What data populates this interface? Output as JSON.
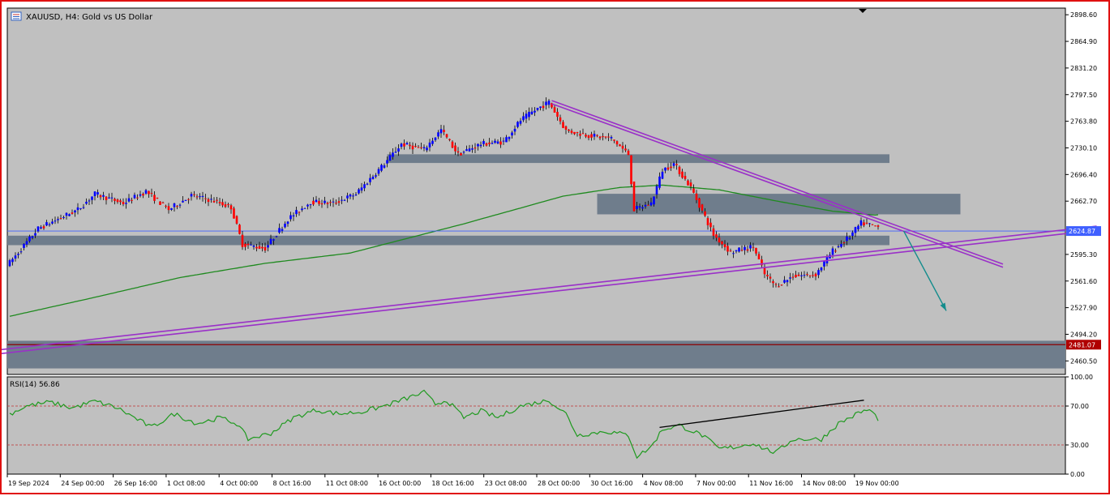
{
  "header": {
    "symbol_title": "XAUUSD, H4:  Gold vs US Dollar"
  },
  "colors": {
    "panel_bg": "#c0c0c0",
    "zone": "#6f7d8c",
    "bull": "#0000ff",
    "bear": "#ff0000",
    "ma": "#1f8a1f",
    "trend": "#9a30c8",
    "rsi": "#1f9a1f",
    "arrow": "#138c8c",
    "support": "#8b0000"
  },
  "chart_data": [
    {
      "type": "candlestick",
      "title": "XAUUSD, H4:  Gold vs US Dollar",
      "ylim": [
        2443.4,
        2907.0
      ],
      "price_ticks": [
        "2898.60",
        "2864.90",
        "2831.20",
        "2797.50",
        "2763.80",
        "2730.10",
        "2696.40",
        "2662.70",
        "2595.30",
        "2561.60",
        "2527.90",
        "2494.20",
        "2460.50"
      ],
      "x_labels": [
        "19 Sep 2024",
        "24 Sep 00:00",
        "26 Sep 16:00",
        "1 Oct 08:00",
        "4 Oct 00:00",
        "8 Oct 16:00",
        "11 Oct 08:00",
        "16 Oct 00:00",
        "18 Oct 16:00",
        "23 Oct 08:00",
        "28 Oct 00:00",
        "30 Oct 16:00",
        "4 Nov 08:00",
        "7 Nov 00:00",
        "11 Nov 16:00",
        "14 Nov 08:00",
        "19 Nov 00:00"
      ],
      "current_price": "2624.87",
      "support_price": "2481.07",
      "anchors": [
        {
          "i": 0,
          "p": 2585
        },
        {
          "i": 10,
          "p": 2628
        },
        {
          "i": 24,
          "p": 2652
        },
        {
          "i": 30,
          "p": 2672
        },
        {
          "i": 40,
          "p": 2660
        },
        {
          "i": 48,
          "p": 2675
        },
        {
          "i": 56,
          "p": 2652
        },
        {
          "i": 64,
          "p": 2670
        },
        {
          "i": 72,
          "p": 2663
        },
        {
          "i": 78,
          "p": 2655
        },
        {
          "i": 82,
          "p": 2608
        },
        {
          "i": 90,
          "p": 2603
        },
        {
          "i": 98,
          "p": 2640
        },
        {
          "i": 106,
          "p": 2662
        },
        {
          "i": 114,
          "p": 2660
        },
        {
          "i": 122,
          "p": 2672
        },
        {
          "i": 132,
          "p": 2710
        },
        {
          "i": 138,
          "p": 2735
        },
        {
          "i": 146,
          "p": 2728
        },
        {
          "i": 152,
          "p": 2753
        },
        {
          "i": 158,
          "p": 2722
        },
        {
          "i": 166,
          "p": 2735
        },
        {
          "i": 174,
          "p": 2738
        },
        {
          "i": 180,
          "p": 2765
        },
        {
          "i": 186,
          "p": 2780
        },
        {
          "i": 190,
          "p": 2788
        },
        {
          "i": 196,
          "p": 2752
        },
        {
          "i": 204,
          "p": 2746
        },
        {
          "i": 212,
          "p": 2742
        },
        {
          "i": 218,
          "p": 2722
        },
        {
          "i": 220,
          "p": 2652
        },
        {
          "i": 226,
          "p": 2660
        },
        {
          "i": 230,
          "p": 2702
        },
        {
          "i": 234,
          "p": 2710
        },
        {
          "i": 240,
          "p": 2680
        },
        {
          "i": 248,
          "p": 2620
        },
        {
          "i": 254,
          "p": 2598
        },
        {
          "i": 262,
          "p": 2605
        },
        {
          "i": 266,
          "p": 2570
        },
        {
          "i": 270,
          "p": 2555
        },
        {
          "i": 276,
          "p": 2568
        },
        {
          "i": 284,
          "p": 2570
        },
        {
          "i": 290,
          "p": 2600
        },
        {
          "i": 296,
          "p": 2618
        },
        {
          "i": 300,
          "p": 2635
        },
        {
          "i": 306,
          "p": 2630
        }
      ],
      "moving_average": [
        {
          "i": 0,
          "p": 2517
        },
        {
          "i": 30,
          "p": 2541
        },
        {
          "i": 60,
          "p": 2566
        },
        {
          "i": 90,
          "p": 2584
        },
        {
          "i": 120,
          "p": 2597
        },
        {
          "i": 160,
          "p": 2634
        },
        {
          "i": 195,
          "p": 2669
        },
        {
          "i": 215,
          "p": 2680
        },
        {
          "i": 230,
          "p": 2683
        },
        {
          "i": 250,
          "p": 2677
        },
        {
          "i": 270,
          "p": 2663
        },
        {
          "i": 290,
          "p": 2650
        },
        {
          "i": 305,
          "p": 2645
        }
      ],
      "zones": [
        {
          "i1": -5,
          "i2": 310,
          "p1": 2619,
          "p2": 2607
        },
        {
          "i1": 133,
          "i2": 310,
          "p1": 2722,
          "p2": 2711
        },
        {
          "i1": 207,
          "i2": 335,
          "p1": 2672,
          "p2": 2646
        },
        {
          "i1": -5,
          "i2": 380,
          "p1": 2486,
          "p2": 2451
        }
      ],
      "trendlines": [
        {
          "i1": 191,
          "p1": 2790,
          "i2": 350,
          "p2": 2583
        },
        {
          "i1": 191,
          "p1": 2786,
          "i2": 350,
          "p2": 2579
        },
        {
          "i1": -5,
          "p1": 2474,
          "i2": 383,
          "p2": 2631
        },
        {
          "i1": -5,
          "p1": 2469,
          "i2": 383,
          "p2": 2626
        }
      ],
      "arrow": {
        "i1": 315,
        "p1": 2625,
        "i2": 330,
        "p2": 2524
      }
    },
    {
      "type": "line",
      "title": "RSI(14) 56.86",
      "ylim": [
        0,
        100
      ],
      "y_ticks": [
        "100.00",
        "70.00",
        "30.00",
        "0.00"
      ],
      "levels": [
        70,
        30
      ],
      "anchors": [
        {
          "i": 0,
          "v": 62
        },
        {
          "i": 6,
          "v": 70
        },
        {
          "i": 14,
          "v": 74
        },
        {
          "i": 22,
          "v": 68
        },
        {
          "i": 30,
          "v": 75
        },
        {
          "i": 38,
          "v": 68
        },
        {
          "i": 44,
          "v": 58
        },
        {
          "i": 50,
          "v": 48
        },
        {
          "i": 58,
          "v": 62
        },
        {
          "i": 66,
          "v": 52
        },
        {
          "i": 74,
          "v": 58
        },
        {
          "i": 80,
          "v": 52
        },
        {
          "i": 84,
          "v": 36
        },
        {
          "i": 92,
          "v": 42
        },
        {
          "i": 100,
          "v": 58
        },
        {
          "i": 108,
          "v": 66
        },
        {
          "i": 116,
          "v": 62
        },
        {
          "i": 124,
          "v": 64
        },
        {
          "i": 132,
          "v": 70
        },
        {
          "i": 140,
          "v": 78
        },
        {
          "i": 146,
          "v": 84
        },
        {
          "i": 150,
          "v": 72
        },
        {
          "i": 154,
          "v": 76
        },
        {
          "i": 160,
          "v": 58
        },
        {
          "i": 166,
          "v": 65
        },
        {
          "i": 172,
          "v": 58
        },
        {
          "i": 180,
          "v": 70
        },
        {
          "i": 190,
          "v": 76
        },
        {
          "i": 196,
          "v": 62
        },
        {
          "i": 200,
          "v": 40
        },
        {
          "i": 210,
          "v": 44
        },
        {
          "i": 218,
          "v": 40
        },
        {
          "i": 221,
          "v": 18
        },
        {
          "i": 226,
          "v": 28
        },
        {
          "i": 230,
          "v": 46
        },
        {
          "i": 236,
          "v": 50
        },
        {
          "i": 244,
          "v": 40
        },
        {
          "i": 250,
          "v": 26
        },
        {
          "i": 256,
          "v": 28
        },
        {
          "i": 262,
          "v": 32
        },
        {
          "i": 266,
          "v": 26
        },
        {
          "i": 270,
          "v": 22
        },
        {
          "i": 276,
          "v": 36
        },
        {
          "i": 286,
          "v": 36
        },
        {
          "i": 292,
          "v": 52
        },
        {
          "i": 300,
          "v": 64
        },
        {
          "i": 303,
          "v": 66
        },
        {
          "i": 306,
          "v": 57
        }
      ],
      "divergence": {
        "i1": 229,
        "v1": 48,
        "i2": 301,
        "v2": 76
      }
    }
  ]
}
